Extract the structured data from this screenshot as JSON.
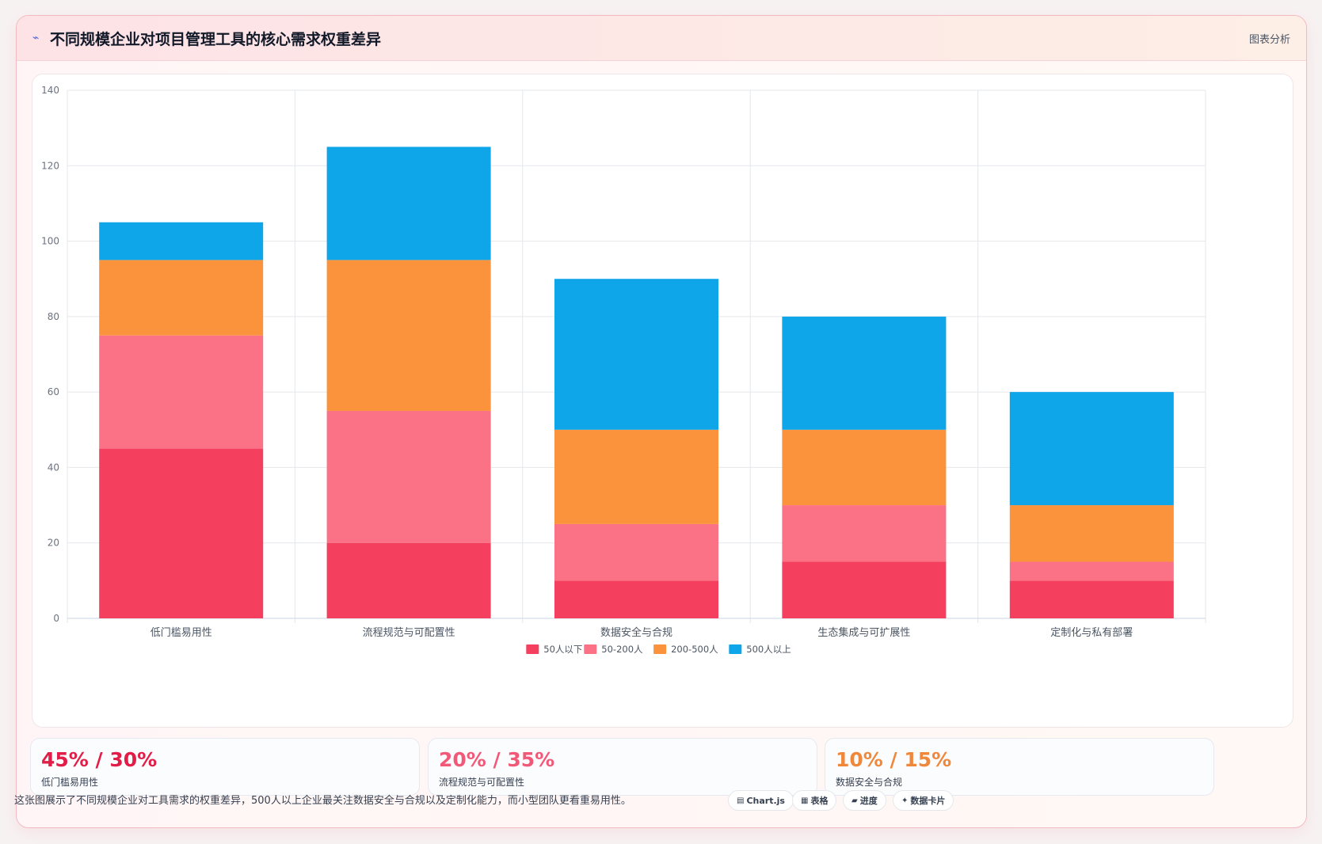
{
  "header": {
    "icon": "chart-line-icon",
    "icon_glyph": "⌁",
    "title": "不同规模企业对项目管理工具的核心需求权重差异",
    "tag": "图表分析"
  },
  "chart_data": {
    "type": "bar",
    "stacked": true,
    "categories": [
      "低门槛易用性",
      "流程规范与可配置性",
      "数据安全与合规",
      "生态集成与可扩展性",
      "定制化与私有部署"
    ],
    "series": [
      {
        "name": "50人以下",
        "color": "#f43f5e",
        "values": [
          45,
          20,
          10,
          15,
          10
        ]
      },
      {
        "name": "50-200人",
        "color": "#fb7185",
        "values": [
          30,
          35,
          15,
          15,
          5
        ]
      },
      {
        "name": "200-500人",
        "color": "#fb923c",
        "values": [
          20,
          40,
          25,
          20,
          15
        ]
      },
      {
        "name": "500人以上",
        "color": "#0ea5e9",
        "values": [
          10,
          30,
          40,
          30,
          30
        ]
      }
    ],
    "ylim": [
      0,
      140
    ],
    "yticks": [
      0,
      20,
      40,
      60,
      80,
      100,
      120,
      140
    ],
    "grid": true,
    "legend": "bottom"
  },
  "stats": [
    {
      "value": "45% / 30%",
      "label": "低门槛易用性",
      "color": "#e11d48"
    },
    {
      "value": "20% / 35%",
      "label": "流程规范与可配置性",
      "color": "#f05a78"
    },
    {
      "value": "10% / 15%",
      "label": "数据安全与合规",
      "color": "#f0883c"
    }
  ],
  "footer": {
    "note": "这张图展示了不同规模企业对工具需求的权重差异，500人以上企业最关注数据安全与合规以及定制化能力，而小型团队更看重易用性。",
    "chips": [
      {
        "icon": "chart-icon",
        "glyph": "▤",
        "label": "Chart.js"
      },
      {
        "icon": "table-icon",
        "glyph": "▦",
        "label": "表格"
      },
      {
        "icon": "progress-icon",
        "glyph": "▰",
        "label": "进度"
      },
      {
        "icon": "sparkle-icon",
        "glyph": "✦",
        "label": "数据卡片"
      }
    ]
  }
}
